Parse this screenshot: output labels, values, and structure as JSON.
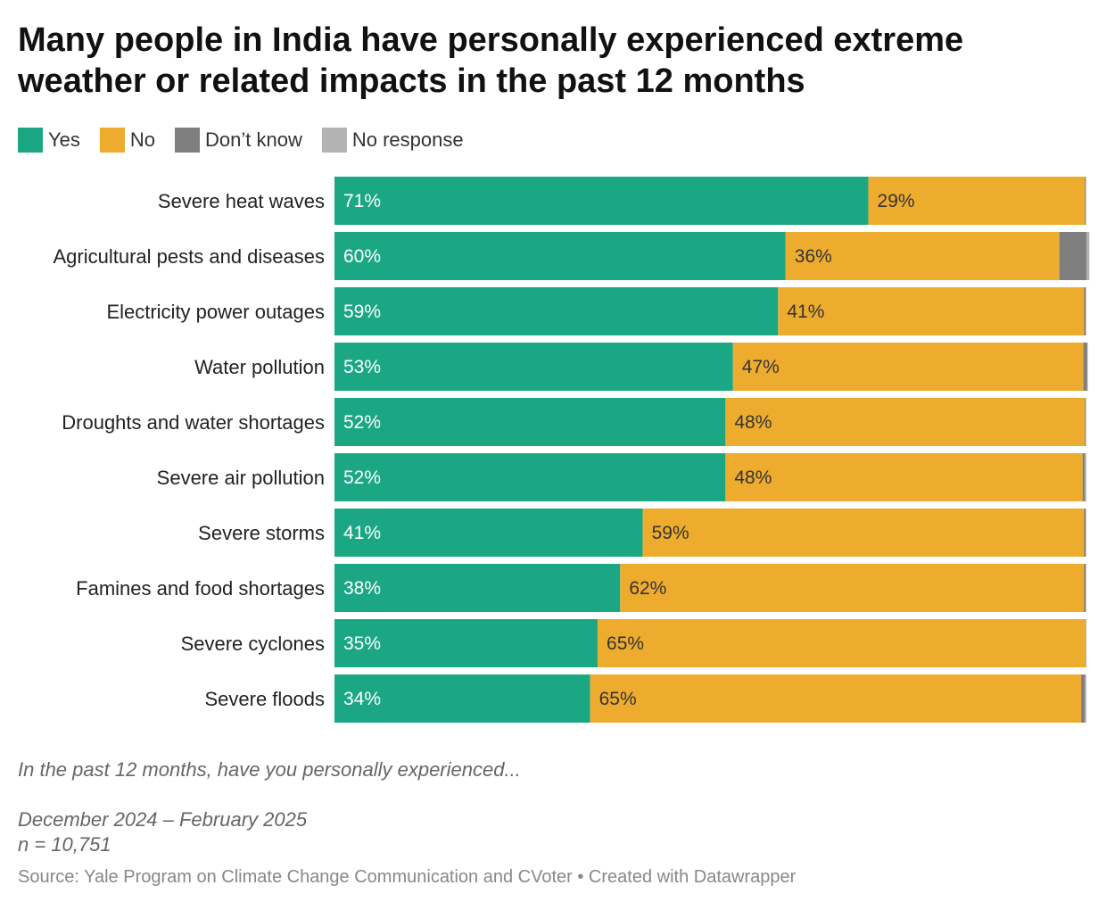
{
  "title": "Many people in India have personally experienced extreme weather or related impacts in the past 12 months",
  "colors": {
    "yes": "#1ba784",
    "no": "#eeac2f",
    "dont_know": "#7f7f7f",
    "no_response": "#b3b3b3"
  },
  "chart_data": {
    "type": "bar",
    "orientation": "horizontal",
    "stacked": true,
    "xlim": [
      0,
      100
    ],
    "legend_placement": "top-left",
    "grid": false,
    "categories": [
      "Severe heat waves",
      "Agricultural pests and diseases",
      "Electricity power outages",
      "Water pollution",
      "Droughts and water shortages",
      "Severe air pollution",
      "Severe storms",
      "Famines and food shortages",
      "Severe cyclones",
      "Severe floods"
    ],
    "series": [
      {
        "name": "Yes",
        "key": "yes",
        "values": [
          71,
          60,
          59,
          53,
          52,
          52,
          41,
          38,
          35,
          34
        ],
        "labels": [
          "71%",
          "60%",
          "59%",
          "53%",
          "52%",
          "52%",
          "41%",
          "38%",
          "35%",
          "34%"
        ]
      },
      {
        "name": "No",
        "key": "no",
        "values": [
          28.8,
          36.4,
          40.7,
          46.6,
          47.8,
          47.5,
          58.7,
          61.7,
          64.9,
          65.3
        ],
        "labels": [
          "29%",
          "36%",
          "41%",
          "47%",
          "48%",
          "48%",
          "59%",
          "62%",
          "65%",
          "65%"
        ]
      },
      {
        "name": "Don’t know",
        "key": "dont_know",
        "values": [
          0.1,
          3.6,
          0.2,
          0.5,
          0.1,
          0.3,
          0.2,
          0.2,
          0.05,
          0.5
        ],
        "labels": []
      },
      {
        "name": "No response",
        "key": "no_response",
        "values": [
          0.1,
          0.4,
          0.1,
          0.1,
          0.1,
          0.2,
          0.1,
          0.1,
          0.05,
          0.2
        ],
        "labels": []
      }
    ]
  },
  "notes": {
    "question": "In the past 12 months, have you personally experienced...",
    "dates": "December 2024 – February 2025",
    "sample": "n = 10,751"
  },
  "source": "Source: Yale Program on Climate Change Communication and CVoter • Created with Datawrapper"
}
